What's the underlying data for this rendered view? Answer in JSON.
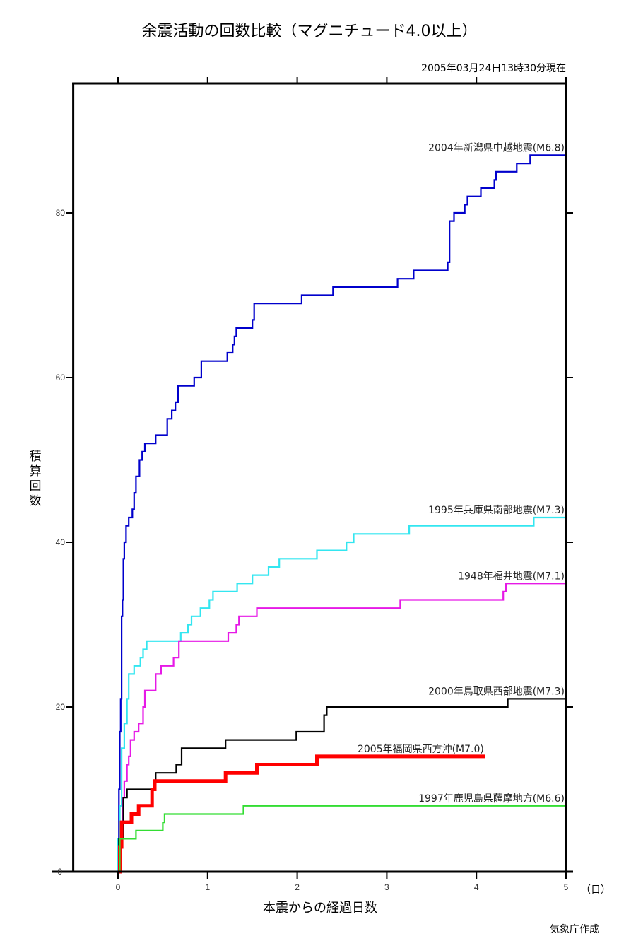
{
  "chart_data": {
    "type": "line",
    "title": "余震活動の回数比較（マグニチュード4.0以上）",
    "subtitle": "2005年03月24日13時30分現在",
    "xlabel": "本震からの経過日数",
    "xunit": "（日）",
    "ylabel": "積算回数",
    "credit": "気象庁作成",
    "xlim": [
      -0.5,
      5
    ],
    "ylim": [
      0,
      96
    ],
    "xticks": [
      0,
      1,
      2,
      3,
      4,
      5
    ],
    "xtick_labels": [
      "0",
      "1",
      "2",
      "3",
      "4",
      "5"
    ],
    "yticks": [
      0,
      20,
      40,
      60,
      80
    ],
    "ytick_labels": [
      "0",
      "20",
      "40",
      "60",
      "80"
    ],
    "grid": false,
    "step": true,
    "series": [
      {
        "name": "2004年新潟県中越地震(M6.8)",
        "color": "#0000cc",
        "emphasis": false,
        "points": [
          [
            0,
            0
          ],
          [
            0.01,
            10
          ],
          [
            0.02,
            17
          ],
          [
            0.03,
            21
          ],
          [
            0.04,
            31
          ],
          [
            0.05,
            33
          ],
          [
            0.06,
            38
          ],
          [
            0.07,
            40
          ],
          [
            0.09,
            42
          ],
          [
            0.12,
            43
          ],
          [
            0.16,
            44
          ],
          [
            0.18,
            46
          ],
          [
            0.2,
            48
          ],
          [
            0.24,
            50
          ],
          [
            0.27,
            51
          ],
          [
            0.3,
            52
          ],
          [
            0.42,
            53
          ],
          [
            0.55,
            55
          ],
          [
            0.6,
            56
          ],
          [
            0.64,
            57
          ],
          [
            0.67,
            59
          ],
          [
            0.85,
            60
          ],
          [
            0.93,
            62
          ],
          [
            1.22,
            63
          ],
          [
            1.28,
            64
          ],
          [
            1.3,
            65
          ],
          [
            1.32,
            66
          ],
          [
            1.5,
            67
          ],
          [
            1.52,
            69
          ],
          [
            2.05,
            70
          ],
          [
            2.4,
            71
          ],
          [
            3.12,
            72
          ],
          [
            3.3,
            73
          ],
          [
            3.68,
            74
          ],
          [
            3.7,
            79
          ],
          [
            3.75,
            80
          ],
          [
            3.87,
            81
          ],
          [
            3.9,
            82
          ],
          [
            4.05,
            83
          ],
          [
            4.2,
            84
          ],
          [
            4.22,
            85
          ],
          [
            4.45,
            86
          ],
          [
            4.6,
            87
          ],
          [
            5,
            87
          ]
        ],
        "end_day": 5
      },
      {
        "name": "1995年兵庫県南部地震(M7.3)",
        "color": "#33e6f0",
        "emphasis": false,
        "points": [
          [
            0,
            0
          ],
          [
            0.0,
            4
          ],
          [
            0.02,
            8
          ],
          [
            0.04,
            15
          ],
          [
            0.07,
            18
          ],
          [
            0.1,
            21
          ],
          [
            0.12,
            24
          ],
          [
            0.18,
            25
          ],
          [
            0.25,
            26
          ],
          [
            0.28,
            27
          ],
          [
            0.32,
            28
          ],
          [
            0.7,
            29
          ],
          [
            0.78,
            30
          ],
          [
            0.82,
            31
          ],
          [
            0.92,
            32
          ],
          [
            1.02,
            33
          ],
          [
            1.06,
            34
          ],
          [
            1.33,
            35
          ],
          [
            1.5,
            36
          ],
          [
            1.68,
            37
          ],
          [
            1.8,
            38
          ],
          [
            2.22,
            39
          ],
          [
            2.55,
            40
          ],
          [
            2.63,
            41
          ],
          [
            3.25,
            42
          ],
          [
            4.64,
            43
          ],
          [
            5,
            43
          ]
        ],
        "end_day": 5
      },
      {
        "name": "1948年福井地震(M7.1)",
        "color": "#e619e6",
        "emphasis": false,
        "points": [
          [
            0,
            0
          ],
          [
            0.02,
            4
          ],
          [
            0.05,
            9
          ],
          [
            0.07,
            11
          ],
          [
            0.1,
            13
          ],
          [
            0.12,
            14
          ],
          [
            0.14,
            16
          ],
          [
            0.18,
            17
          ],
          [
            0.23,
            18
          ],
          [
            0.28,
            20
          ],
          [
            0.3,
            22
          ],
          [
            0.42,
            24
          ],
          [
            0.48,
            25
          ],
          [
            0.62,
            26
          ],
          [
            0.68,
            28
          ],
          [
            1.23,
            29
          ],
          [
            1.32,
            30
          ],
          [
            1.35,
            31
          ],
          [
            1.55,
            32
          ],
          [
            3.15,
            33
          ],
          [
            4.3,
            34
          ],
          [
            4.33,
            35
          ],
          [
            5,
            35
          ]
        ],
        "end_day": 5
      },
      {
        "name": "2000年鳥取県西部地震(M7.3)",
        "color": "#000000",
        "emphasis": false,
        "points": [
          [
            0,
            0
          ],
          [
            0.01,
            4
          ],
          [
            0.03,
            4
          ],
          [
            0.06,
            9
          ],
          [
            0.1,
            10
          ],
          [
            0.4,
            11
          ],
          [
            0.42,
            12
          ],
          [
            0.65,
            13
          ],
          [
            0.71,
            15
          ],
          [
            1.2,
            16
          ],
          [
            1.99,
            17
          ],
          [
            2.3,
            19
          ],
          [
            2.33,
            20
          ],
          [
            4.35,
            21
          ],
          [
            5,
            21
          ]
        ],
        "end_day": 5
      },
      {
        "name": "2005年福岡県西方沖(M7.0)",
        "color": "#ff0000",
        "emphasis": true,
        "points": [
          [
            0,
            0
          ],
          [
            0.02,
            3
          ],
          [
            0.04,
            6
          ],
          [
            0.15,
            7
          ],
          [
            0.23,
            8
          ],
          [
            0.38,
            10
          ],
          [
            0.41,
            11
          ],
          [
            1.2,
            12
          ],
          [
            1.55,
            13
          ],
          [
            2.22,
            14
          ],
          [
            4.1,
            14
          ]
        ],
        "end_day": 4.1
      },
      {
        "name": "1997年鹿児島県薩摩地方(M6.6)",
        "color": "#33dd33",
        "emphasis": false,
        "points": [
          [
            0,
            0
          ],
          [
            0.02,
            4
          ],
          [
            0.2,
            5
          ],
          [
            0.5,
            6
          ],
          [
            0.52,
            7
          ],
          [
            1.4,
            8
          ],
          [
            5,
            8
          ]
        ],
        "end_day": 5
      }
    ]
  }
}
